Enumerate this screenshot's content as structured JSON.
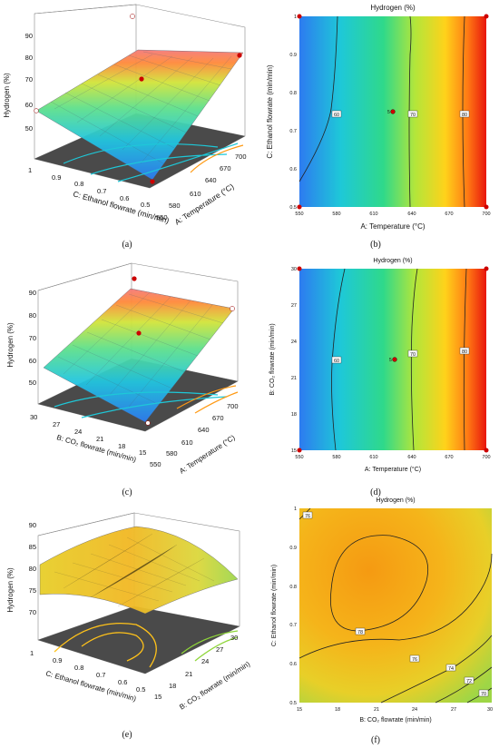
{
  "panels": [
    {
      "id": "a",
      "caption": "(a)",
      "kind": "surface",
      "title": "",
      "zlabel": "Hydrogen (%)",
      "xlabel": "A: Temperature (°C)",
      "ylabel": "C: Ethanol flowrate (min/min)",
      "zticks": [
        "50",
        "60",
        "70",
        "80",
        "90"
      ],
      "xticks": [
        "550",
        "580",
        "610",
        "640",
        "670",
        "700"
      ],
      "yticks": [
        "0.5",
        "0.6",
        "0.7",
        "0.8",
        "0.9",
        "1"
      ]
    },
    {
      "id": "b",
      "caption": "(b)",
      "kind": "contour",
      "title": "Hydrogen (%)",
      "xlabel": "A: Temperature (°C)",
      "ylabel": "C: Ethanol flowrate (min/min)",
      "xticks": [
        "550",
        "580",
        "610",
        "640",
        "670",
        "700"
      ],
      "yticks": [
        "0.5",
        "0.6",
        "0.7",
        "0.8",
        "0.9",
        "1"
      ],
      "contour_labels": [
        "60",
        "70",
        "80"
      ],
      "center_label": "5"
    },
    {
      "id": "c",
      "caption": "(c)",
      "kind": "surface",
      "title": "",
      "zlabel": "Hydrogen (%)",
      "xlabel": "A: Temperature (°C)",
      "ylabel": "B: CO₂ flowrate (min/min)",
      "zticks": [
        "50",
        "60",
        "70",
        "80",
        "90"
      ],
      "xticks": [
        "550",
        "580",
        "610",
        "640",
        "670",
        "700"
      ],
      "yticks": [
        "15",
        "18",
        "21",
        "24",
        "27",
        "30"
      ]
    },
    {
      "id": "d",
      "caption": "(d)",
      "kind": "contour",
      "title": "Hydrogen (%)",
      "xlabel": "A: Temperature (°C)",
      "ylabel": "B: CO₂ flowrate (min/min)",
      "xticks": [
        "550",
        "580",
        "610",
        "640",
        "670",
        "700"
      ],
      "yticks": [
        "15",
        "18",
        "21",
        "24",
        "27",
        "30"
      ],
      "contour_labels": [
        "60",
        "70",
        "80"
      ],
      "center_label": "5"
    },
    {
      "id": "e",
      "caption": "(e)",
      "kind": "surface",
      "title": "",
      "zlabel": "Hydrogen (%)",
      "xlabel": "B: CO₂ flowrate (min/min)",
      "ylabel": "C: Ethanol flowrate (min/min)",
      "zticks": [
        "70",
        "75",
        "80",
        "85",
        "90"
      ],
      "xticks": [
        "15",
        "18",
        "21",
        "24",
        "27",
        "30"
      ],
      "yticks": [
        "0.5",
        "0.6",
        "0.7",
        "0.8",
        "0.9",
        "1"
      ]
    },
    {
      "id": "f",
      "caption": "(f)",
      "kind": "contour",
      "title": "Hydrogen (%)",
      "xlabel": "B: CO₂ flowrate (min/min)",
      "ylabel": "C: Ethanol flowrate (min/min)",
      "xticks": [
        "15",
        "18",
        "21",
        "24",
        "27",
        "30"
      ],
      "yticks": [
        "0.5",
        "0.6",
        "0.7",
        "0.8",
        "0.9",
        "1"
      ],
      "contour_labels": [
        "76",
        "78",
        "76",
        "74",
        "72",
        "70"
      ]
    }
  ],
  "chart_data": [
    {
      "type": "surface",
      "x_range": [
        550,
        700
      ],
      "y_range": [
        0.5,
        1
      ],
      "z_range": [
        50,
        90
      ],
      "z_estimates": [
        55,
        85
      ]
    },
    {
      "type": "contour",
      "x_range": [
        550,
        700
      ],
      "y_range": [
        0.5,
        1
      ],
      "levels": [
        60,
        70,
        80
      ],
      "center_point": [
        625,
        0.75
      ]
    },
    {
      "type": "surface",
      "x_range": [
        550,
        700
      ],
      "y_range": [
        15,
        30
      ],
      "z_range": [
        50,
        90
      ],
      "z_estimates": [
        55,
        85
      ]
    },
    {
      "type": "contour",
      "x_range": [
        550,
        700
      ],
      "y_range": [
        15,
        30
      ],
      "levels": [
        60,
        70,
        80
      ],
      "center_point": [
        625,
        22.5
      ]
    },
    {
      "type": "surface",
      "x_range": [
        15,
        30
      ],
      "y_range": [
        0.5,
        1
      ],
      "z_range": [
        70,
        90
      ],
      "z_estimates": [
        72,
        79
      ]
    },
    {
      "type": "contour",
      "x_range": [
        15,
        30
      ],
      "y_range": [
        0.5,
        1
      ],
      "levels": [
        70,
        72,
        74,
        76,
        78
      ],
      "center_point": [
        21,
        0.8
      ]
    }
  ]
}
